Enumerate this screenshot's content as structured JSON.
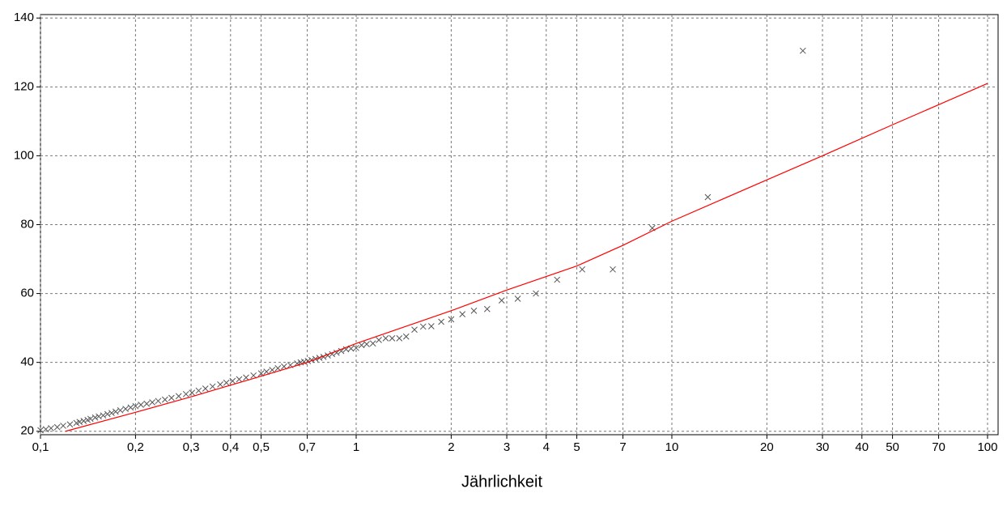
{
  "chart_data": {
    "type": "scatter",
    "xlabel": "Jährlichkeit",
    "xscale": "log",
    "xlim": [
      0.1,
      108
    ],
    "ylim": [
      19,
      141
    ],
    "grid": true,
    "xticks": [
      {
        "value": 0.1,
        "label": "0,1"
      },
      {
        "value": 0.2,
        "label": "0,2"
      },
      {
        "value": 0.3,
        "label": "0,3"
      },
      {
        "value": 0.4,
        "label": "0,4"
      },
      {
        "value": 0.5,
        "label": "0,5"
      },
      {
        "value": 0.7,
        "label": "0,7"
      },
      1,
      2,
      3,
      4,
      5,
      7,
      10,
      20,
      30,
      40,
      50,
      70,
      100
    ],
    "yticks": [
      20,
      40,
      60,
      80,
      100,
      120,
      140
    ],
    "series": [
      {
        "type": "scatter",
        "color": "#555555",
        "x": [
          26,
          13,
          8.67,
          6.5,
          5.2,
          4.33,
          3.71,
          3.25,
          2.89,
          2.6,
          2.36,
          2.17,
          2.0,
          1.86,
          1.73,
          1.63,
          1.53,
          1.44,
          1.37,
          1.3,
          1.24,
          1.18,
          1.13,
          1.08,
          1.04,
          1.0,
          0.963,
          0.929,
          0.897,
          0.867,
          0.839,
          0.813,
          0.788,
          0.765,
          0.743,
          0.722,
          0.703,
          0.684,
          0.667,
          0.65,
          0.619,
          0.591,
          0.565,
          0.542,
          0.52,
          0.5,
          0.473,
          0.448,
          0.426,
          0.406,
          0.388,
          0.371,
          0.351,
          0.333,
          0.317,
          0.302,
          0.289,
          0.274,
          0.26,
          0.248,
          0.236,
          0.226,
          0.217,
          0.208,
          0.2,
          0.193,
          0.186,
          0.179,
          0.173,
          0.168,
          0.163,
          0.158,
          0.153,
          0.149,
          0.144,
          0.141,
          0.137,
          0.133,
          0.13,
          0.124,
          0.118,
          0.113,
          0.108,
          0.104,
          0.1
        ],
        "values": [
          130.5,
          88,
          79,
          67,
          67,
          64,
          60,
          58.5,
          58,
          55.5,
          55,
          54,
          52.5,
          51.8,
          50.5,
          50.4,
          49.5,
          47.5,
          47,
          47,
          47,
          46.5,
          45.5,
          45.3,
          45,
          44.2,
          44,
          43.8,
          43.3,
          42.8,
          42.4,
          42,
          41.6,
          41.3,
          41,
          40.7,
          40.4,
          40.2,
          40,
          39.7,
          39.2,
          38.8,
          38.3,
          37.8,
          37.3,
          36.8,
          36.2,
          35.6,
          35.1,
          34.6,
          34.1,
          33.6,
          33,
          32.4,
          31.8,
          31.2,
          30.8,
          30.2,
          29.7,
          29.2,
          28.8,
          28.4,
          28,
          27.7,
          27.3,
          26.9,
          26.5,
          26.1,
          25.7,
          25.3,
          25,
          24.6,
          24.3,
          24,
          23.6,
          23.3,
          23,
          22.7,
          22.4,
          22,
          21.6,
          21.2,
          20.9,
          20.6,
          20.3
        ]
      },
      {
        "type": "line",
        "color": "#ff0000",
        "x": [
          0.12,
          0.2,
          0.3,
          0.5,
          0.7,
          1,
          2,
          3,
          5,
          7,
          10,
          20,
          30,
          50,
          100
        ],
        "values": [
          20,
          25.5,
          30,
          36,
          40,
          45.5,
          55,
          61,
          68,
          74,
          81,
          93,
          100,
          109,
          121
        ]
      }
    ]
  }
}
